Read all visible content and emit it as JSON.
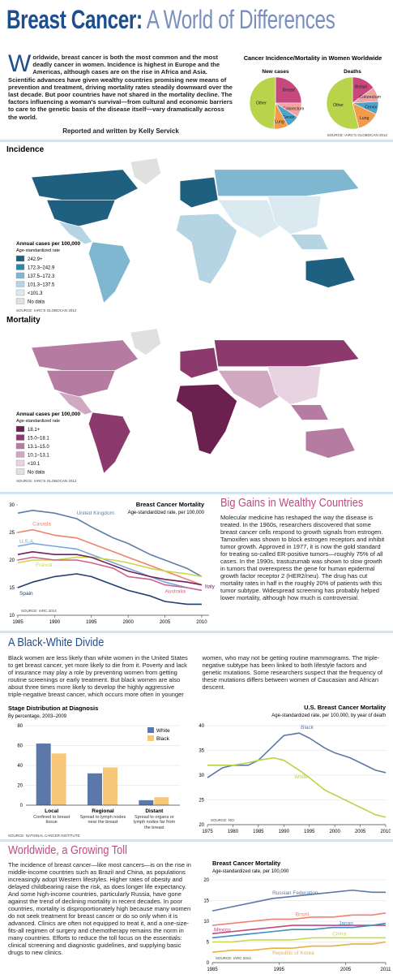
{
  "header": {
    "title_part1": "Breast Cancer:",
    "title_part2": "A World of Differences"
  },
  "intro": {
    "text": "Worldwide, breast cancer is both the most common and the most deadly cancer in women. Incidence is highest in Europe and the Americas, although cases are on the rise in Africa and Asia. Scientific advances have given wealthy countries promising new means of prevention and treatment, driving mortality rates steadily downward over the last decade. But poor countries have not shared in the mortality decline. The factors influencing a woman's survival—from cultural and economic barriers to care to the genetic basis of the disease itself—vary dramatically across the world.",
    "byline": "Reported and written by Kelly Servick"
  },
  "pie_panel": {
    "title": "Cancer Incidence/Mortality in Women Worldwide",
    "source": "SOURCE: IARC'S GLOBOCAN 2012"
  },
  "maps": [
    {
      "title": "Incidence",
      "legend_title": "Annual cases per 100,000",
      "legend_subtitle": "Age-standardized rate",
      "source": "SOURCE: IARC'S GLOBOCAN 2012",
      "legend": [
        {
          "label": "242.9+",
          "color": "#1f5f80"
        },
        {
          "label": "172.3–242.9",
          "color": "#2e86a8"
        },
        {
          "label": "137.5–172.3",
          "color": "#7fb6d0"
        },
        {
          "label": "101.3–137.5",
          "color": "#b5d4e4"
        },
        {
          "label": "<101.3",
          "color": "#dbe9f1"
        },
        {
          "label": "No data",
          "color": "#e0e0e0"
        }
      ]
    },
    {
      "title": "Mortality",
      "legend_title": "Annual cases per 100,000",
      "legend_subtitle": "Age-standardized rate",
      "source": "SOURCE: IARC'S GLOBOCAN 2012",
      "legend": [
        {
          "label": "18.1+",
          "color": "#6b2050"
        },
        {
          "label": "15.0–18.1",
          "color": "#8c3a6e"
        },
        {
          "label": "13.1–15.0",
          "color": "#b57ba0"
        },
        {
          "label": "10.1–13.1",
          "color": "#d0a8c2"
        },
        {
          "label": "<10.1",
          "color": "#e8d4e0"
        },
        {
          "label": "No data",
          "color": "#e0e0e0"
        }
      ]
    }
  ],
  "sections": [
    {
      "heading": "Big Gains in Wealthy Countries",
      "text": "Molecular medicine has reshaped the way the disease is treated. In the 1960s, researchers discovered that some breast cancer cells respond to growth signals from estrogen. Tamoxifen was shown to block estrogen receptors and inhibit tumor growth. Approved in 1977, it is now the gold standard for treating so-called ER-positive tumors—roughly 75% of all cases. In the 1990s, trastuzumab was shown to slow growth in tumors that overexpress the gene for human epidermal growth factor receptor 2 (HER2/neu). The drug has cut mortality rates in half in the roughly 20% of patients with this tumor subtype. Widespread screening has probably helped lower mortality, although how much is controversial."
    },
    {
      "heading": "A Black-White Divide",
      "text": "Black women are less likely than white women in the United States to get breast cancer, yet more likely to die from it. Poverty and lack of insurance may play a role by preventing women from getting routine screenings or early treatment. But black women are also about three times more likely to develop the highly aggressive triple-negative breast cancer, which occurs more often in younger women, who may not be getting routine mammograms. The triple-negative subtype has been linked to both lifestyle factors and genetic mutations. Some researchers suspect that the frequency of these mutations differs between women of Caucasian and African descent."
    },
    {
      "heading": "Worldwide, a Growing Toll",
      "text": "The incidence of breast cancer—like most cancers—is on the rise in middle-income countries such as Brazil and China, as populations increasingly adopt Western lifestyles. Higher rates of obesity and delayed childbearing raise the risk, as does longer life expectancy. And some high-income countries, particularly Russia, have gone against the trend of declining mortality in recent decades. In poor countries, mortality is disproportionately high because many women do not seek treatment for breast cancer or do so only when it is advanced. Clinics are often not equipped to treat it, and a one-size-fits-all regimen of surgery and chemotherapy remains the norm in many countries. Efforts to reduce the toll focus on the essentials: clinical screening and diagnostic guidelines, and supplying basic drugs to new clinics."
    }
  ],
  "chart_data": [
    {
      "type": "pie",
      "title": "New cases",
      "categories": [
        "Breast",
        "Colorectum",
        "Cervix",
        "Lung",
        "Other"
      ],
      "values": [
        25,
        9,
        8,
        9,
        49
      ],
      "colors": [
        "#c8487e",
        "#f2a3a0",
        "#4fa3c8",
        "#f39b4b",
        "#b9d34a"
      ]
    },
    {
      "type": "pie",
      "title": "Deaths",
      "categories": [
        "Breast",
        "Colorectum",
        "Cervix",
        "Lung",
        "Other"
      ],
      "values": [
        15,
        9,
        8,
        14,
        54
      ],
      "colors": [
        "#c8487e",
        "#f2a3a0",
        "#4fa3c8",
        "#f39b4b",
        "#b9d34a"
      ]
    },
    {
      "type": "line",
      "title": "Breast Cancer Mortality",
      "subtitle": "Age-standardized rate, per 100,000",
      "source": "SOURCE: IARC 2014",
      "x": [
        1985,
        1987,
        1990,
        1993,
        1995,
        1998,
        2000,
        2003,
        2005,
        2008,
        2010
      ],
      "xlim": [
        1985,
        2011
      ],
      "xticks": [
        1985,
        1990,
        1995,
        2000,
        2005,
        2010
      ],
      "ylim": [
        10,
        30
      ],
      "yticks": [
        10,
        15,
        20,
        25,
        30
      ],
      "grid": false,
      "series": [
        {
          "name": "United Kingdom",
          "color": "#5b7fa8",
          "values": [
            28.5,
            29,
            28.5,
            27.5,
            26,
            24,
            23,
            21,
            20,
            18.5,
            17
          ]
        },
        {
          "name": "Canada",
          "color": "#f08070",
          "values": [
            25,
            25.5,
            24.5,
            24,
            23,
            21.5,
            20.5,
            19,
            18,
            16.5,
            15.5
          ]
        },
        {
          "name": "U.S.A.",
          "color": "#7aa6d6",
          "values": [
            22.5,
            23,
            22.5,
            22,
            21,
            19.5,
            18.5,
            17,
            16,
            15,
            14.5
          ]
        },
        {
          "name": "France",
          "color": "#c8d848",
          "values": [
            19.5,
            20,
            20,
            20.5,
            20.5,
            20,
            19.5,
            18.5,
            18,
            17.5,
            17
          ]
        },
        {
          "name": "Australia",
          "color": "#d06090",
          "values": [
            20,
            20.5,
            20,
            20,
            19.5,
            18.5,
            17,
            16.5,
            15.5,
            15,
            14.5
          ]
        },
        {
          "name": "Italy",
          "color": "#702060",
          "values": [
            21,
            21.5,
            21,
            21,
            20.5,
            19,
            18,
            17,
            16.5,
            16,
            15.5
          ]
        },
        {
          "name": "Spain",
          "color": "#1f3f6f",
          "values": [
            15,
            16,
            17,
            17.5,
            17,
            15.5,
            14.5,
            13.5,
            12.5,
            12,
            12
          ]
        }
      ]
    },
    {
      "type": "bar",
      "title": "Stage Distribution at Diagnosis",
      "subtitle": "By percentage, 2003–2009",
      "source": "SOURCE: NATIONAL CANCER INSTITUTE",
      "categories": [
        "Local",
        "Regional",
        "Distant"
      ],
      "category_notes": [
        "Confined to breast tissue",
        "Spread to lymph nodes near the breast",
        "Spread to organs or lymph nodes far from the breast"
      ],
      "ylim": [
        0,
        80
      ],
      "yticks": [
        0,
        20,
        40,
        60,
        80
      ],
      "grid": true,
      "legend_position": "top-right",
      "series": [
        {
          "name": "White",
          "color": "#5b78a8",
          "values": [
            62,
            32,
            5
          ]
        },
        {
          "name": "Black",
          "color": "#f7c77a",
          "values": [
            52,
            38,
            8
          ]
        }
      ]
    },
    {
      "type": "line",
      "title": "U.S. Breast Cancer Mortality",
      "subtitle": "Age-standardized rate, per 100,000, by year of death",
      "source": "SOURCE: NCI",
      "x": [
        1975,
        1978,
        1980,
        1983,
        1985,
        1988,
        1990,
        1993,
        1995,
        1998,
        2000,
        2003,
        2005,
        2008,
        2010
      ],
      "xlim": [
        1975,
        2010
      ],
      "xticks": [
        1975,
        1980,
        1985,
        1990,
        1995,
        2000,
        2005,
        2010
      ],
      "ylim": [
        20,
        40
      ],
      "yticks": [
        20,
        25,
        30,
        35,
        40
      ],
      "grid": true,
      "series": [
        {
          "name": "Black",
          "color": "#5b78a8",
          "values": [
            29.5,
            31.5,
            32,
            32,
            33,
            36,
            38,
            38.5,
            37.5,
            35.5,
            34.5,
            33.5,
            32.5,
            31,
            30.5
          ]
        },
        {
          "name": "White",
          "color": "#b9d34a",
          "values": [
            32,
            32,
            32,
            32.5,
            33,
            33.5,
            33,
            31,
            29.5,
            27,
            26,
            24.5,
            23.5,
            22,
            21.5
          ]
        }
      ]
    },
    {
      "type": "line",
      "title": "Breast Cancer Mortality",
      "subtitle": "Age-standardized rate, per 100,000",
      "source": "SOURCE: IARC 2014",
      "x": [
        1985,
        1988,
        1991,
        1994,
        1997,
        2000,
        2003,
        2006,
        2009,
        2011
      ],
      "xlim": [
        1985,
        2011
      ],
      "xticks": [
        1985,
        1995,
        2005,
        2011
      ],
      "ylim": [
        0,
        20
      ],
      "yticks": [
        0,
        5,
        10,
        15,
        20
      ],
      "grid": true,
      "series": [
        {
          "name": "Russian Federation",
          "color": "#5b78a8",
          "values": [
            12.5,
            13.5,
            14.5,
            15.5,
            16,
            16.5,
            17,
            17.5,
            17,
            17
          ]
        },
        {
          "name": "Brazil",
          "color": "#f08070",
          "values": [
            9,
            9.5,
            10,
            10.5,
            10.5,
            11,
            11,
            11.5,
            11.5,
            12
          ]
        },
        {
          "name": "Mexico",
          "color": "#c04a80",
          "values": [
            7,
            7.5,
            8,
            8.5,
            9,
            9,
            9,
            9,
            9,
            9
          ]
        },
        {
          "name": "Japan",
          "color": "#3a8fc0",
          "values": [
            6,
            6.5,
            7,
            7.5,
            8,
            8,
            8.5,
            8.5,
            9,
            9.5
          ]
        },
        {
          "name": "China",
          "color": "#c8d848",
          "values": [
            5,
            5,
            5.5,
            5.5,
            5.5,
            6,
            6,
            6,
            6,
            6
          ]
        },
        {
          "name": "Republic of Korea",
          "color": "#e8b040",
          "values": [
            2.5,
            3,
            3,
            3.5,
            3.5,
            4,
            4,
            4.5,
            4.5,
            5
          ]
        }
      ]
    }
  ]
}
